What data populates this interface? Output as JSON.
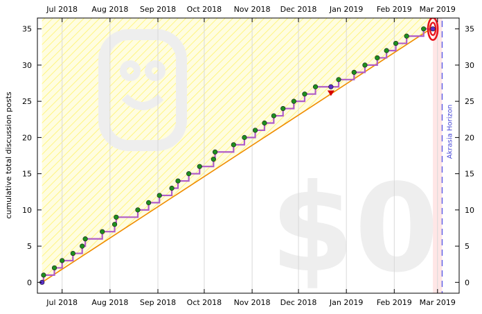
{
  "chart_data": {
    "type": "line",
    "ylabel": "cumulative total discussion posts",
    "x_ticks": [
      "Jul 2018",
      "Aug 2018",
      "Sep 2018",
      "Oct 2018",
      "Nov 2018",
      "Dec 2018",
      "Jan 2019",
      "Feb 2019",
      "Mar 2019"
    ],
    "x_tick_dates": [
      "2018-07-01",
      "2018-08-01",
      "2018-09-01",
      "2018-10-01",
      "2018-11-01",
      "2018-12-01",
      "2019-01-01",
      "2019-02-01",
      "2019-03-01"
    ],
    "y_ticks": [
      0,
      5,
      10,
      15,
      20,
      25,
      30,
      35
    ],
    "xlim": [
      "2018-06-15",
      "2019-03-15"
    ],
    "ylim": [
      -1.5,
      36.5
    ],
    "grid": "vertical at month ticks",
    "watermark_text": "$0",
    "watermark_icon": "smiley-face-icon",
    "horizon_label": "Akrasia Horizon",
    "horizon_date": "2019-03-04",
    "today_date": "2019-02-26",
    "derail_marker_date": "2018-12-22",
    "colors": {
      "datapoint": "#1e8f1e",
      "start_point": "#5a2fc8",
      "steps": "#b05cc8",
      "road": "#f08c00",
      "yellow_region": "#fffdd8",
      "hatch": "#fff36a",
      "target_ring": "#e8141c",
      "horizon": "#5a5ae6",
      "derail": "#d40000",
      "grid": "#d8d8d8",
      "future_band": "#ffe6e6"
    },
    "road": [
      [
        "2018-06-18",
        0
      ],
      [
        "2019-02-26",
        35.2
      ]
    ],
    "points": [
      [
        "2018-06-18",
        0
      ],
      [
        "2018-06-19",
        1
      ],
      [
        "2018-06-26",
        2
      ],
      [
        "2018-07-01",
        3
      ],
      [
        "2018-07-08",
        4
      ],
      [
        "2018-07-14",
        5
      ],
      [
        "2018-07-16",
        6
      ],
      [
        "2018-07-27",
        7
      ],
      [
        "2018-08-04",
        8
      ],
      [
        "2018-08-05",
        9
      ],
      [
        "2018-08-19",
        10
      ],
      [
        "2018-08-26",
        11
      ],
      [
        "2018-09-02",
        12
      ],
      [
        "2018-09-10",
        13
      ],
      [
        "2018-09-14",
        14
      ],
      [
        "2018-09-21",
        15
      ],
      [
        "2018-09-28",
        16
      ],
      [
        "2018-10-07",
        17
      ],
      [
        "2018-10-08",
        18
      ],
      [
        "2018-10-20",
        19
      ],
      [
        "2018-10-27",
        20
      ],
      [
        "2018-11-03",
        21
      ],
      [
        "2018-11-09",
        22
      ],
      [
        "2018-11-15",
        23
      ],
      [
        "2018-11-21",
        24
      ],
      [
        "2018-11-28",
        25
      ],
      [
        "2018-12-05",
        26
      ],
      [
        "2018-12-12",
        27
      ],
      [
        "2018-12-22",
        27
      ],
      [
        "2018-12-27",
        28
      ],
      [
        "2019-01-06",
        29
      ],
      [
        "2019-01-13",
        30
      ],
      [
        "2019-01-21",
        31
      ],
      [
        "2019-01-27",
        32
      ],
      [
        "2019-02-02",
        33
      ],
      [
        "2019-02-09",
        34
      ],
      [
        "2019-02-20",
        35
      ],
      [
        "2019-02-26",
        35
      ]
    ]
  }
}
